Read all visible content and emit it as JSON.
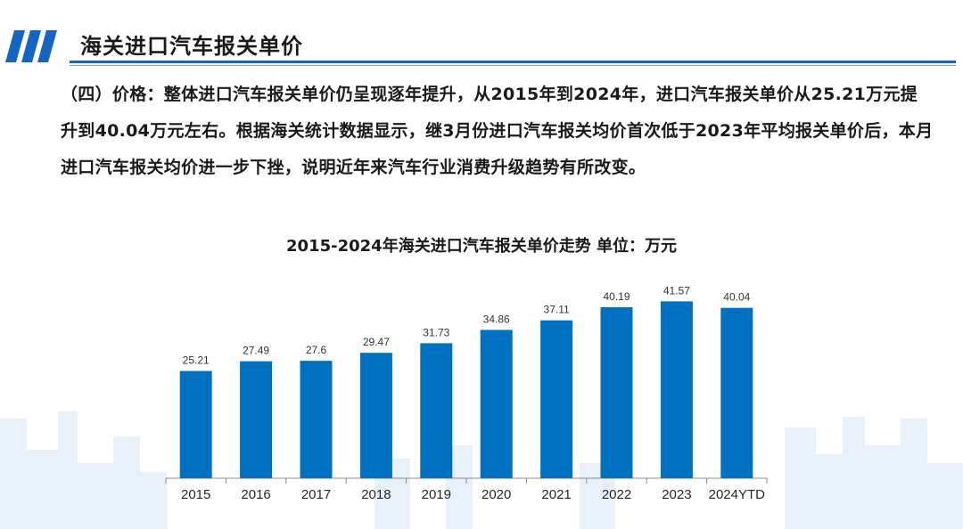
{
  "header": {
    "title": "海关进口汽车报关单价"
  },
  "content": {
    "paragraph": "（四）价格：整体进口汽车报关单价仍呈现逐年提升，从2015年到2024年，进口汽车报关单价从25.21万元提升到40.04万元左右。根据海关统计数据显示，继3月份进口汽车报关均价首次低于2023年平均报关单价后，本月进口汽车报关均价进一步下挫，说明近年来汽车行业消费升级趋势有所改变。"
  },
  "colors": {
    "accent": "#1565c0",
    "bar": "#0070c0",
    "skyline": "#e6effa"
  },
  "chart_data": {
    "type": "bar",
    "title": "2015-2024年海关进口汽车报关单价走势  单位：万元",
    "categories": [
      "2015",
      "2016",
      "2017",
      "2018",
      "2019",
      "2020",
      "2021",
      "2022",
      "2023",
      "2024YTD"
    ],
    "values": [
      25.21,
      27.49,
      27.6,
      29.47,
      31.73,
      34.86,
      37.11,
      40.19,
      41.57,
      40.04
    ],
    "value_labels": [
      "25.21",
      "27.49",
      "27.6",
      "29.47",
      "31.73",
      "34.86",
      "37.11",
      "40.19",
      "41.57",
      "40.04"
    ],
    "xlabel": "",
    "ylabel": "",
    "ylim": [
      0,
      45
    ],
    "grid": false,
    "legend": "none",
    "bar_color": "#0070c0"
  }
}
